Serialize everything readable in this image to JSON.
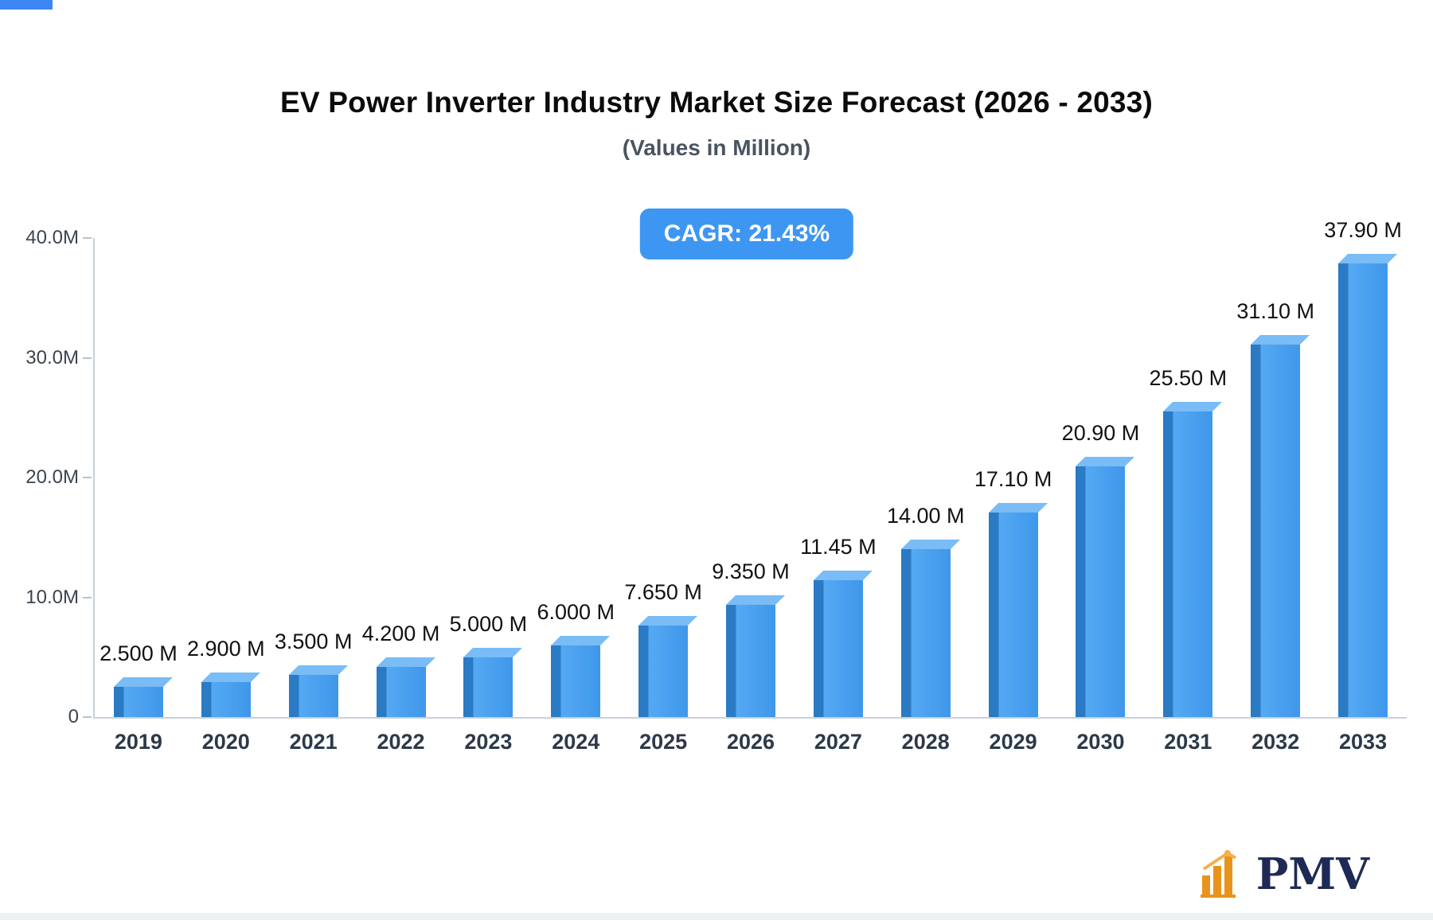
{
  "page": {
    "title": "EV Power Inverter Industry Market Size Forecast (2026 - 2033)",
    "subtitle": "(Values in Million)",
    "cagr_badge": "CAGR: 21.43%",
    "badge_color": "#3E96F3",
    "corner_accent_color": "#3D87F5",
    "brand": {
      "name": "PMV",
      "icon": "bar-chart-logo-icon",
      "icon_color": "#E8941B",
      "text_color": "#1D2A55"
    }
  },
  "chart_data": {
    "type": "bar",
    "title": "EV Power Inverter Industry Market Size Forecast (2026 - 2033)",
    "subtitle": "(Values in Million)",
    "categories": [
      "2019",
      "2020",
      "2021",
      "2022",
      "2023",
      "2024",
      "2025",
      "2026",
      "2027",
      "2028",
      "2029",
      "2030",
      "2031",
      "2032",
      "2033"
    ],
    "values": [
      2.5,
      2.9,
      3.5,
      4.2,
      5.0,
      6.0,
      7.65,
      9.35,
      11.45,
      14.0,
      17.1,
      20.9,
      25.5,
      31.1,
      37.9
    ],
    "value_labels": [
      "2.500 M",
      "2.900 M",
      "3.500 M",
      "4.200 M",
      "5.000 M",
      "6.000 M",
      "7.650 M",
      "9.350 M",
      "11.45 M",
      "14.00 M",
      "17.10 M",
      "20.90 M",
      "25.50 M",
      "31.10 M",
      "37.90 M"
    ],
    "xlabel": "",
    "ylabel": "",
    "ylim": [
      0,
      40
    ],
    "y_ticks": [
      "0",
      "10.0M",
      "20.0M",
      "30.0M",
      "40.0M"
    ],
    "annotations": [
      "CAGR: 21.43%"
    ],
    "grid": false,
    "legend": "none",
    "bar_face_color": "#3F97EA",
    "bar_face_light": "#55A9F3",
    "bar_side_color": "#2B7AC4",
    "bar_top_color": "#79BCF6"
  }
}
